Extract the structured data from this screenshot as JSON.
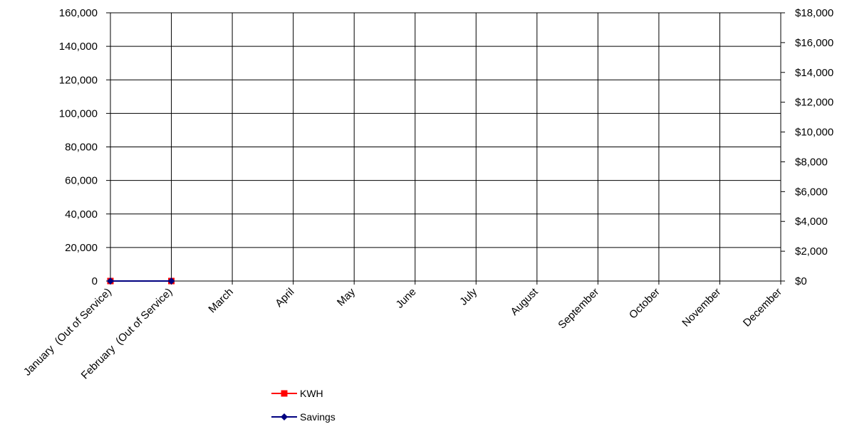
{
  "chart_data": {
    "type": "line",
    "categories": [
      "January  (Out of Service)",
      "February  (Out of Service)",
      "March",
      "April",
      "May",
      "June",
      "July",
      "August",
      "September",
      "October",
      "November",
      "December"
    ],
    "y_left": {
      "ylim": [
        0,
        160000
      ],
      "ticks": [
        0,
        20000,
        40000,
        60000,
        80000,
        100000,
        120000,
        140000,
        160000
      ],
      "tick_labels": [
        "0",
        "20,000",
        "40,000",
        "60,000",
        "80,000",
        "100,000",
        "120,000",
        "140,000",
        "160,000"
      ]
    },
    "y_right": {
      "ylim": [
        0,
        18000
      ],
      "ticks": [
        0,
        2000,
        4000,
        6000,
        8000,
        10000,
        12000,
        14000,
        16000,
        18000
      ],
      "tick_labels": [
        "$0",
        "$2,000",
        "$4,000",
        "$6,000",
        "$8,000",
        "$10,000",
        "$12,000",
        "$14,000",
        "$16,000",
        "$18,000"
      ]
    },
    "series": [
      {
        "name": "KWH",
        "axis": "left",
        "color": "#ff0000",
        "marker": "square",
        "values": [
          0,
          0,
          null,
          null,
          null,
          null,
          null,
          null,
          null,
          null,
          null,
          null
        ]
      },
      {
        "name": "Savings",
        "axis": "right",
        "color": "#000080",
        "marker": "diamond",
        "values": [
          0,
          0,
          null,
          null,
          null,
          null,
          null,
          null,
          null,
          null,
          null,
          null
        ]
      }
    ],
    "grid": true,
    "legend_position": "bottom-left"
  }
}
